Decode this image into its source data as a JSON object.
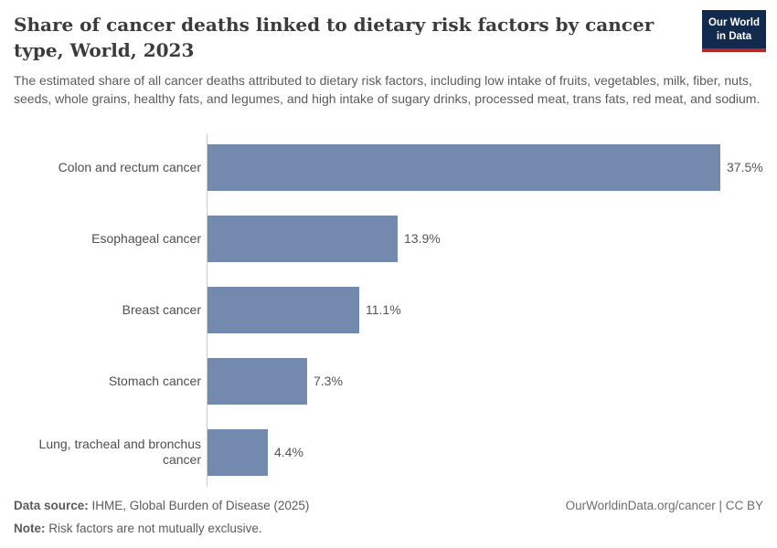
{
  "header": {
    "title": "Share of cancer deaths linked to dietary risk factors by cancer type, World, 2023",
    "subtitle": "The estimated share of all cancer deaths attributed to dietary risk factors, including low intake of fruits, vegetables, milk, fiber, nuts, seeds, whole grains, healthy fats, and legumes, and high intake of sugary drinks, processed meat, trans fats, red meat, and sodium.",
    "logo": {
      "line1": "Our World",
      "line2": "in Data",
      "bg_color": "#122a4d",
      "accent_color": "#b5282a"
    }
  },
  "chart_data": {
    "type": "bar",
    "orientation": "horizontal",
    "title": "Share of cancer deaths linked to dietary risk factors by cancer type, World, 2023",
    "categories": [
      "Colon and rectum cancer",
      "Esophageal cancer",
      "Breast cancer",
      "Stomach cancer",
      "Lung, tracheal and bronchus cancer"
    ],
    "values": [
      37.5,
      13.9,
      11.1,
      7.3,
      4.4
    ],
    "value_labels": [
      "37.5%",
      "13.9%",
      "11.1%",
      "7.3%",
      "4.4%"
    ],
    "unit": "%",
    "xlim": [
      0,
      37.5
    ],
    "grid": false,
    "legend": "none",
    "bar_color": "#738aae",
    "axis_color": "#cccccc"
  },
  "footer": {
    "data_source_label": "Data source:",
    "data_source": "IHME, Global Burden of Disease (2025)",
    "note_label": "Note:",
    "note": "Risk factors are not mutually exclusive.",
    "attribution": "OurWorldinData.org/cancer | CC BY"
  }
}
